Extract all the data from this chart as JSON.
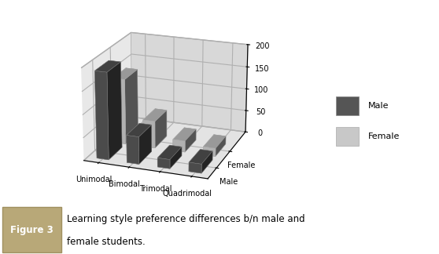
{
  "categories": [
    "Unimodal",
    "Bimodal",
    "Trimodal",
    "Quadrimodal"
  ],
  "male_values": [
    190,
    60,
    20,
    20
  ],
  "female_values": [
    145,
    60,
    25,
    18
  ],
  "male_color": "#555555",
  "female_color": "#c8c8c8",
  "ylim": [
    0,
    200
  ],
  "yticks": [
    0,
    50,
    100,
    150,
    200
  ],
  "pane_back_color": "#e8e8e8",
  "pane_side_color": "#d8d8d8",
  "pane_floor_color": "#c8c8c8",
  "caption_line1": "Learning style preference differences b/n male and",
  "caption_line2": "female students.",
  "figure_label": "Figure 3",
  "fig_box_color": "#b8a878",
  "view_elev": 20,
  "view_azim": -70
}
